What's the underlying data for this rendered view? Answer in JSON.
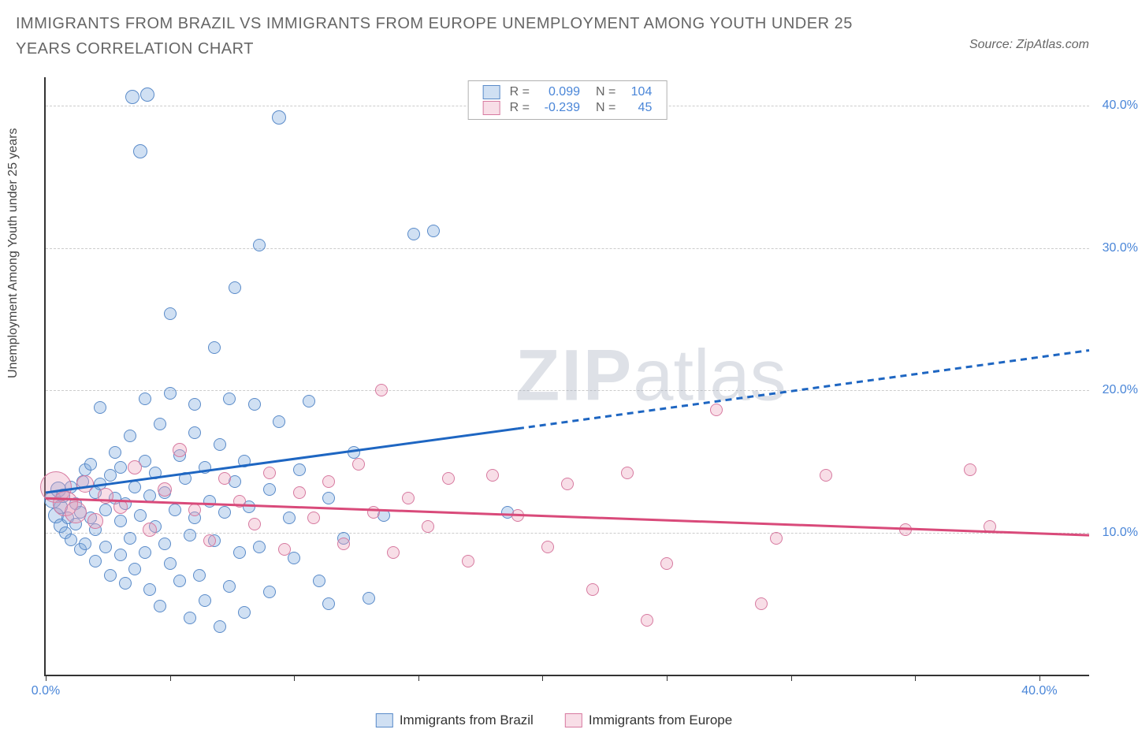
{
  "title": "IMMIGRANTS FROM BRAZIL VS IMMIGRANTS FROM EUROPE UNEMPLOYMENT AMONG YOUTH UNDER 25 YEARS CORRELATION CHART",
  "source": "Source: ZipAtlas.com",
  "ylabel": "Unemployment Among Youth under 25 years",
  "watermark_a": "ZIP",
  "watermark_b": "atlas",
  "chart": {
    "type": "scatter",
    "xlim": [
      0,
      42
    ],
    "ylim": [
      0,
      42
    ],
    "x_domain_max_for_ticks": 40,
    "y_gridlines": [
      10,
      20,
      30,
      40
    ],
    "y_tick_labels": [
      "10.0%",
      "20.0%",
      "30.0%",
      "40.0%"
    ],
    "x_ticks": [
      0,
      5,
      10,
      15,
      20,
      25,
      30,
      35,
      40
    ],
    "x_tick_labels_shown": {
      "0": "0.0%",
      "40": "40.0%"
    },
    "background_color": "#ffffff",
    "grid_color": "#cccccc",
    "axis_color": "#333333",
    "tick_label_color": "#4a86d8",
    "series": [
      {
        "key": "brazil",
        "label": "Immigrants from Brazil",
        "marker_fill": "rgba(120,165,220,0.35)",
        "marker_stroke": "#5a8bc9",
        "line_color": "#1e66c2",
        "line_solid": {
          "x1": 0,
          "y1": 12.8,
          "x2": 19,
          "y2": 17.3
        },
        "line_dash": {
          "x1": 19,
          "y1": 17.3,
          "x2": 42,
          "y2": 22.8
        },
        "stats": {
          "R_label": "R =",
          "R": "0.099",
          "N_label": "N =",
          "N": "104"
        },
        "points": [
          {
            "x": 0.3,
            "y": 12.3,
            "r": 11
          },
          {
            "x": 0.4,
            "y": 11.2,
            "r": 10
          },
          {
            "x": 0.5,
            "y": 13.0,
            "r": 10
          },
          {
            "x": 0.6,
            "y": 10.5,
            "r": 9
          },
          {
            "x": 0.6,
            "y": 11.8,
            "r": 9
          },
          {
            "x": 0.7,
            "y": 12.6,
            "r": 9
          },
          {
            "x": 0.8,
            "y": 10.0,
            "r": 8
          },
          {
            "x": 0.9,
            "y": 11.0,
            "r": 8
          },
          {
            "x": 1.0,
            "y": 13.2,
            "r": 8
          },
          {
            "x": 1.0,
            "y": 9.5,
            "r": 8
          },
          {
            "x": 1.2,
            "y": 12.0,
            "r": 8
          },
          {
            "x": 1.2,
            "y": 10.6,
            "r": 8
          },
          {
            "x": 1.4,
            "y": 11.4,
            "r": 8
          },
          {
            "x": 1.4,
            "y": 8.8,
            "r": 8
          },
          {
            "x": 1.5,
            "y": 13.6,
            "r": 8
          },
          {
            "x": 1.6,
            "y": 14.4,
            "r": 8
          },
          {
            "x": 1.6,
            "y": 9.2,
            "r": 8
          },
          {
            "x": 1.8,
            "y": 11.0,
            "r": 8
          },
          {
            "x": 1.8,
            "y": 14.8,
            "r": 8
          },
          {
            "x": 2.0,
            "y": 10.2,
            "r": 8
          },
          {
            "x": 2.0,
            "y": 12.8,
            "r": 8
          },
          {
            "x": 2.0,
            "y": 8.0,
            "r": 8
          },
          {
            "x": 2.2,
            "y": 18.8,
            "r": 8
          },
          {
            "x": 2.2,
            "y": 13.4,
            "r": 8
          },
          {
            "x": 2.4,
            "y": 11.6,
            "r": 8
          },
          {
            "x": 2.4,
            "y": 9.0,
            "r": 8
          },
          {
            "x": 2.6,
            "y": 14.0,
            "r": 8
          },
          {
            "x": 2.6,
            "y": 7.0,
            "r": 8
          },
          {
            "x": 2.8,
            "y": 12.4,
            "r": 8
          },
          {
            "x": 2.8,
            "y": 15.6,
            "r": 8
          },
          {
            "x": 3.0,
            "y": 10.8,
            "r": 8
          },
          {
            "x": 3.0,
            "y": 8.4,
            "r": 8
          },
          {
            "x": 3.0,
            "y": 14.6,
            "r": 8
          },
          {
            "x": 3.2,
            "y": 6.4,
            "r": 8
          },
          {
            "x": 3.2,
            "y": 12.0,
            "r": 8
          },
          {
            "x": 3.4,
            "y": 16.8,
            "r": 8
          },
          {
            "x": 3.4,
            "y": 9.6,
            "r": 8
          },
          {
            "x": 3.5,
            "y": 40.6,
            "r": 9
          },
          {
            "x": 3.6,
            "y": 13.2,
            "r": 8
          },
          {
            "x": 3.6,
            "y": 7.4,
            "r": 8
          },
          {
            "x": 3.8,
            "y": 11.2,
            "r": 8
          },
          {
            "x": 3.8,
            "y": 36.8,
            "r": 9
          },
          {
            "x": 4.0,
            "y": 15.0,
            "r": 8
          },
          {
            "x": 4.0,
            "y": 8.6,
            "r": 8
          },
          {
            "x": 4.0,
            "y": 19.4,
            "r": 8
          },
          {
            "x": 4.1,
            "y": 40.8,
            "r": 9
          },
          {
            "x": 4.2,
            "y": 12.6,
            "r": 8
          },
          {
            "x": 4.2,
            "y": 6.0,
            "r": 8
          },
          {
            "x": 4.4,
            "y": 10.4,
            "r": 8
          },
          {
            "x": 4.4,
            "y": 14.2,
            "r": 8
          },
          {
            "x": 4.6,
            "y": 4.8,
            "r": 8
          },
          {
            "x": 4.6,
            "y": 17.6,
            "r": 8
          },
          {
            "x": 4.8,
            "y": 9.2,
            "r": 8
          },
          {
            "x": 4.8,
            "y": 12.8,
            "r": 8
          },
          {
            "x": 5.0,
            "y": 7.8,
            "r": 8
          },
          {
            "x": 5.0,
            "y": 19.8,
            "r": 8
          },
          {
            "x": 5.0,
            "y": 25.4,
            "r": 8
          },
          {
            "x": 5.2,
            "y": 11.6,
            "r": 8
          },
          {
            "x": 5.4,
            "y": 15.4,
            "r": 8
          },
          {
            "x": 5.4,
            "y": 6.6,
            "r": 8
          },
          {
            "x": 5.6,
            "y": 13.8,
            "r": 8
          },
          {
            "x": 5.8,
            "y": 9.8,
            "r": 8
          },
          {
            "x": 5.8,
            "y": 4.0,
            "r": 8
          },
          {
            "x": 6.0,
            "y": 17.0,
            "r": 8
          },
          {
            "x": 6.0,
            "y": 11.0,
            "r": 8
          },
          {
            "x": 6.0,
            "y": 19.0,
            "r": 8
          },
          {
            "x": 6.2,
            "y": 7.0,
            "r": 8
          },
          {
            "x": 6.4,
            "y": 14.6,
            "r": 8
          },
          {
            "x": 6.4,
            "y": 5.2,
            "r": 8
          },
          {
            "x": 6.6,
            "y": 12.2,
            "r": 8
          },
          {
            "x": 6.8,
            "y": 23.0,
            "r": 8
          },
          {
            "x": 6.8,
            "y": 9.4,
            "r": 8
          },
          {
            "x": 7.0,
            "y": 16.2,
            "r": 8
          },
          {
            "x": 7.0,
            "y": 3.4,
            "r": 8
          },
          {
            "x": 7.2,
            "y": 11.4,
            "r": 8
          },
          {
            "x": 7.4,
            "y": 19.4,
            "r": 8
          },
          {
            "x": 7.4,
            "y": 6.2,
            "r": 8
          },
          {
            "x": 7.6,
            "y": 13.6,
            "r": 8
          },
          {
            "x": 7.6,
            "y": 27.2,
            "r": 8
          },
          {
            "x": 7.8,
            "y": 8.6,
            "r": 8
          },
          {
            "x": 8.0,
            "y": 15.0,
            "r": 8
          },
          {
            "x": 8.0,
            "y": 4.4,
            "r": 8
          },
          {
            "x": 8.2,
            "y": 11.8,
            "r": 8
          },
          {
            "x": 8.4,
            "y": 19.0,
            "r": 8
          },
          {
            "x": 8.6,
            "y": 9.0,
            "r": 8
          },
          {
            "x": 8.6,
            "y": 30.2,
            "r": 8
          },
          {
            "x": 9.0,
            "y": 13.0,
            "r": 8
          },
          {
            "x": 9.0,
            "y": 5.8,
            "r": 8
          },
          {
            "x": 9.4,
            "y": 17.8,
            "r": 8
          },
          {
            "x": 9.4,
            "y": 39.2,
            "r": 9
          },
          {
            "x": 9.8,
            "y": 11.0,
            "r": 8
          },
          {
            "x": 10.0,
            "y": 8.2,
            "r": 8
          },
          {
            "x": 10.2,
            "y": 14.4,
            "r": 8
          },
          {
            "x": 10.6,
            "y": 19.2,
            "r": 8
          },
          {
            "x": 11.0,
            "y": 6.6,
            "r": 8
          },
          {
            "x": 11.4,
            "y": 12.4,
            "r": 8
          },
          {
            "x": 11.4,
            "y": 5.0,
            "r": 8
          },
          {
            "x": 12.0,
            "y": 9.6,
            "r": 8
          },
          {
            "x": 12.4,
            "y": 15.6,
            "r": 8
          },
          {
            "x": 13.0,
            "y": 5.4,
            "r": 8
          },
          {
            "x": 13.6,
            "y": 11.2,
            "r": 8
          },
          {
            "x": 14.8,
            "y": 31.0,
            "r": 8
          },
          {
            "x": 15.6,
            "y": 31.2,
            "r": 8
          },
          {
            "x": 18.6,
            "y": 11.4,
            "r": 8
          }
        ]
      },
      {
        "key": "europe",
        "label": "Immigrants from Europe",
        "marker_fill": "rgba(235,160,185,0.35)",
        "marker_stroke": "#d77aa0",
        "line_color": "#d94a7a",
        "line_solid": {
          "x1": 0,
          "y1": 12.4,
          "x2": 42,
          "y2": 9.8
        },
        "line_dash": null,
        "stats": {
          "R_label": "R =",
          "R": "-0.239",
          "N_label": "N =",
          "N": "45"
        },
        "points": [
          {
            "x": 0.4,
            "y": 13.2,
            "r": 20
          },
          {
            "x": 0.8,
            "y": 12.0,
            "r": 16
          },
          {
            "x": 1.2,
            "y": 11.4,
            "r": 14
          },
          {
            "x": 1.6,
            "y": 13.4,
            "r": 11
          },
          {
            "x": 2.0,
            "y": 10.8,
            "r": 10
          },
          {
            "x": 2.4,
            "y": 12.6,
            "r": 10
          },
          {
            "x": 3.0,
            "y": 11.8,
            "r": 9
          },
          {
            "x": 3.6,
            "y": 14.6,
            "r": 9
          },
          {
            "x": 4.2,
            "y": 10.2,
            "r": 9
          },
          {
            "x": 4.8,
            "y": 13.0,
            "r": 9
          },
          {
            "x": 5.4,
            "y": 15.8,
            "r": 9
          },
          {
            "x": 6.0,
            "y": 11.6,
            "r": 8
          },
          {
            "x": 6.6,
            "y": 9.4,
            "r": 8
          },
          {
            "x": 7.2,
            "y": 13.8,
            "r": 8
          },
          {
            "x": 7.8,
            "y": 12.2,
            "r": 8
          },
          {
            "x": 8.4,
            "y": 10.6,
            "r": 8
          },
          {
            "x": 9.0,
            "y": 14.2,
            "r": 8
          },
          {
            "x": 9.6,
            "y": 8.8,
            "r": 8
          },
          {
            "x": 10.2,
            "y": 12.8,
            "r": 8
          },
          {
            "x": 10.8,
            "y": 11.0,
            "r": 8
          },
          {
            "x": 11.4,
            "y": 13.6,
            "r": 8
          },
          {
            "x": 12.0,
            "y": 9.2,
            "r": 8
          },
          {
            "x": 12.6,
            "y": 14.8,
            "r": 8
          },
          {
            "x": 13.2,
            "y": 11.4,
            "r": 8
          },
          {
            "x": 13.5,
            "y": 20.0,
            "r": 8
          },
          {
            "x": 14.0,
            "y": 8.6,
            "r": 8
          },
          {
            "x": 14.6,
            "y": 12.4,
            "r": 8
          },
          {
            "x": 15.4,
            "y": 10.4,
            "r": 8
          },
          {
            "x": 16.2,
            "y": 13.8,
            "r": 8
          },
          {
            "x": 17.0,
            "y": 8.0,
            "r": 8
          },
          {
            "x": 18.0,
            "y": 14.0,
            "r": 8
          },
          {
            "x": 19.0,
            "y": 11.2,
            "r": 8
          },
          {
            "x": 20.2,
            "y": 9.0,
            "r": 8
          },
          {
            "x": 21.0,
            "y": 13.4,
            "r": 8
          },
          {
            "x": 22.0,
            "y": 6.0,
            "r": 8
          },
          {
            "x": 23.4,
            "y": 14.2,
            "r": 8
          },
          {
            "x": 24.2,
            "y": 3.8,
            "r": 8
          },
          {
            "x": 25.0,
            "y": 7.8,
            "r": 8
          },
          {
            "x": 27.0,
            "y": 18.6,
            "r": 8
          },
          {
            "x": 28.8,
            "y": 5.0,
            "r": 8
          },
          {
            "x": 29.4,
            "y": 9.6,
            "r": 8
          },
          {
            "x": 31.4,
            "y": 14.0,
            "r": 8
          },
          {
            "x": 34.6,
            "y": 10.2,
            "r": 8
          },
          {
            "x": 37.2,
            "y": 14.4,
            "r": 8
          },
          {
            "x": 38.0,
            "y": 10.4,
            "r": 8
          }
        ]
      }
    ]
  }
}
